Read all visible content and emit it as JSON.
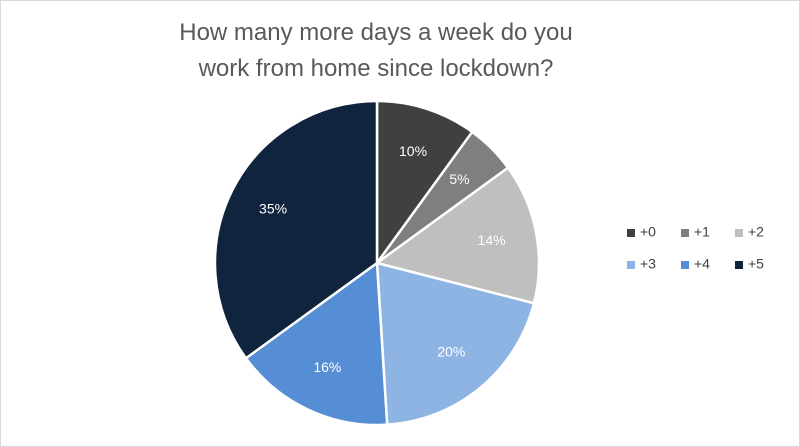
{
  "chart_data": {
    "type": "pie",
    "title": "How many more days a week do you work from home since lockdown?",
    "categories": [
      "+0",
      "+1",
      "+2",
      "+3",
      "+4",
      "+5"
    ],
    "values": [
      10,
      5,
      14,
      20,
      16,
      35
    ],
    "value_labels": [
      "10%",
      "5%",
      "14%",
      "20%",
      "16%",
      "35%"
    ],
    "colors": [
      "#404040",
      "#7f7f7f",
      "#bfbfbf",
      "#8eb4e3",
      "#558ed5",
      "#10243e"
    ],
    "legend": "right"
  }
}
